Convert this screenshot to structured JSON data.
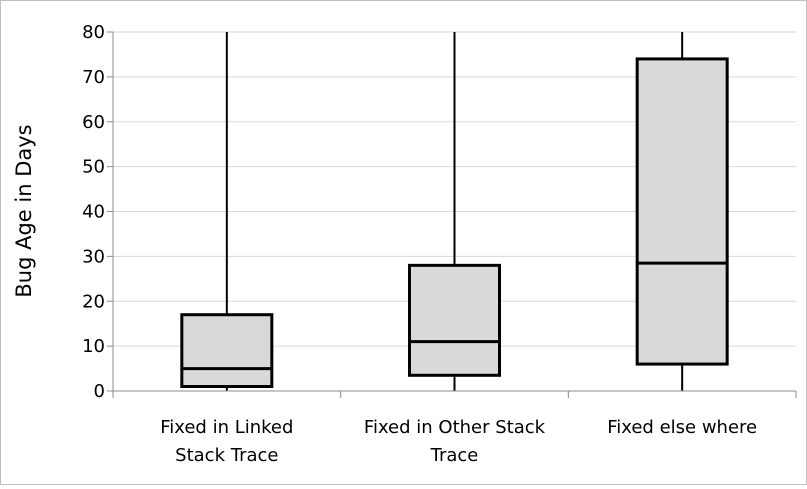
{
  "chart_data": {
    "type": "box",
    "title": "",
    "xlabel": "",
    "ylabel": "Bug Age in Days",
    "ylim": [
      0,
      80
    ],
    "yticks": [
      0,
      10,
      20,
      30,
      40,
      50,
      60,
      70,
      80
    ],
    "grid": true,
    "legend": "none",
    "categories": [
      [
        "Fixed in Linked",
        "Stack Trace"
      ],
      [
        "Fixed in Other Stack",
        "Trace"
      ],
      [
        "Fixed else where"
      ]
    ],
    "boxes": [
      {
        "whisker_low": 0,
        "q1": 1,
        "median": 5,
        "q3": 17,
        "whisker_high": 80
      },
      {
        "whisker_low": 0,
        "q1": 3.5,
        "median": 11,
        "q3": 28,
        "whisker_high": 80
      },
      {
        "whisker_low": 0,
        "q1": 6,
        "median": 28.5,
        "q3": 74,
        "whisker_high": 80
      }
    ],
    "colors": {
      "box_fill": "#d9d9d9",
      "box_stroke": "#000000",
      "grid": "#d9d9d9",
      "axis": "#8c8c8c"
    }
  }
}
